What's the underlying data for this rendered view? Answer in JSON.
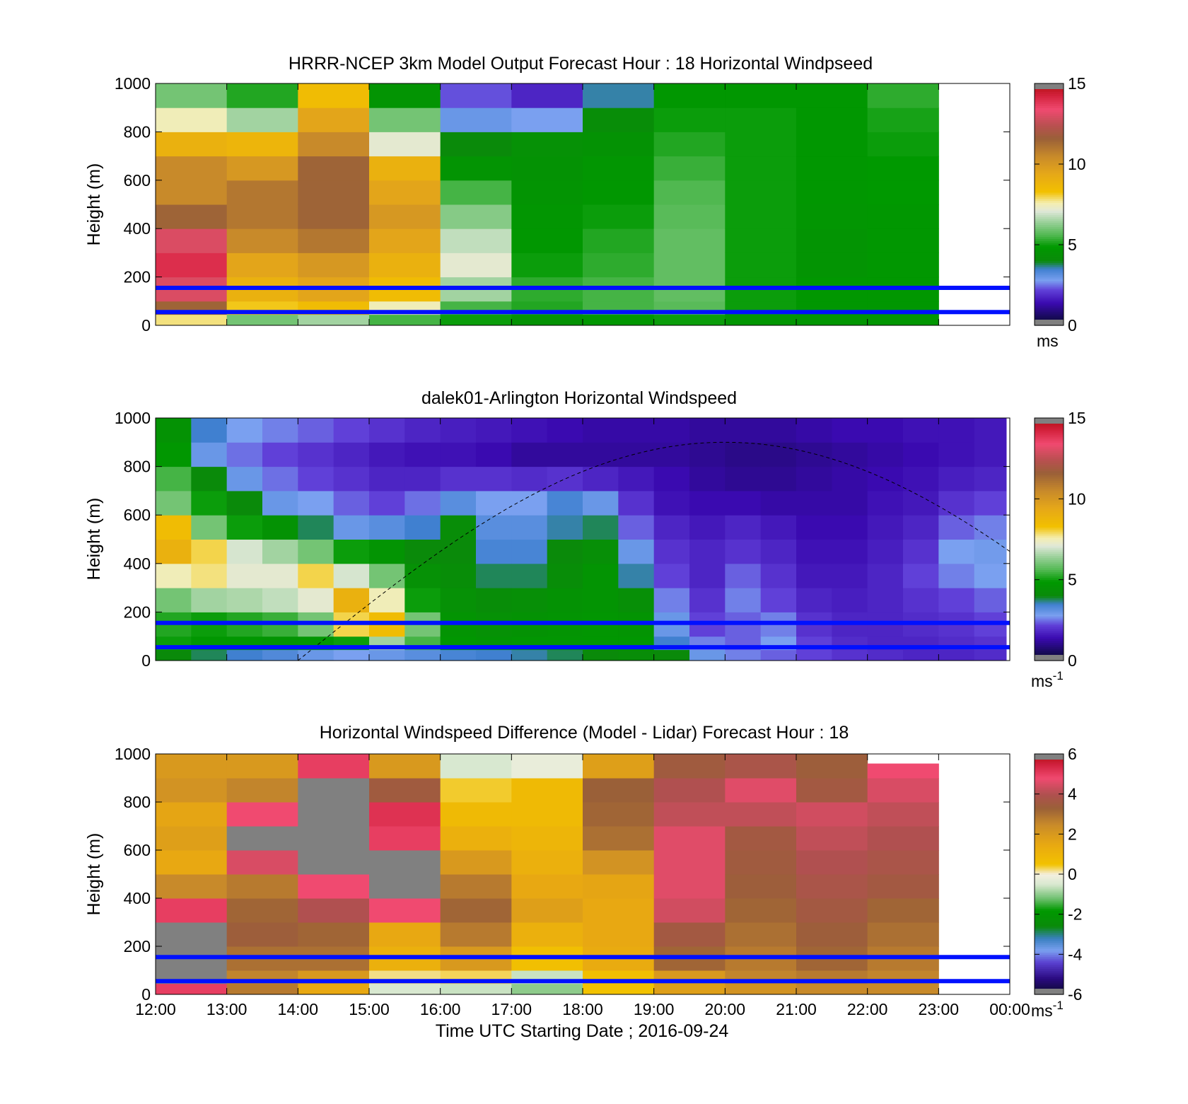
{
  "figure": {
    "xlabel": "Time UTC  Starting Date ; 2016-09-24",
    "x_ticks": [
      "12:00",
      "13:00",
      "14:00",
      "15:00",
      "16:00",
      "17:00",
      "18:00",
      "19:00",
      "20:00",
      "21:00",
      "22:00",
      "23:00",
      "00:00"
    ]
  },
  "chart_data": [
    {
      "type": "heatmap",
      "title": "HRRR-NCEP 3km Model Output   Forecast Hour : 18 Horizontal Windpseed",
      "ylabel": "Height (m)",
      "ylim": [
        0,
        1000
      ],
      "y_ticks": [
        "0",
        "200",
        "400",
        "600",
        "800",
        "1000"
      ],
      "colorbar": {
        "range": [
          0,
          15
        ],
        "ticks": [
          "0",
          "5",
          "10",
          "15"
        ],
        "unit": "ms",
        "unit_sup": "",
        "colormap": "speed"
      },
      "x_hours": [
        12,
        13,
        14,
        15,
        16,
        17,
        18,
        19,
        20,
        21,
        22,
        23,
        24
      ],
      "height_levels_m": [
        20,
        75,
        150,
        250,
        350,
        450,
        550,
        650,
        750,
        850,
        950
      ],
      "columns": [
        {
          "hour_start": 12,
          "speed_ms": [
            7.8,
            11.5,
            13.0,
            14.0,
            13.0,
            11.5,
            10.5,
            10.5,
            9.0,
            7.5,
            6.0
          ]
        },
        {
          "hour_start": 13,
          "speed_ms": [
            6.0,
            8.2,
            9.0,
            9.5,
            10.5,
            11.0,
            11.0,
            10.0,
            8.8,
            6.5,
            5.2
          ]
        },
        {
          "hour_start": 14,
          "speed_ms": [
            6.5,
            8.5,
            9.5,
            10.0,
            11.0,
            11.5,
            11.5,
            11.5,
            10.5,
            9.5,
            8.5
          ]
        },
        {
          "hour_start": 15,
          "speed_ms": [
            5.5,
            7.5,
            8.5,
            9.0,
            9.5,
            10.0,
            9.5,
            9.0,
            7.2,
            6.0,
            4.6
          ]
        },
        {
          "hour_start": 16,
          "speed_ms": [
            5.0,
            5.5,
            6.5,
            7.2,
            6.8,
            6.2,
            5.5,
            4.6,
            4.0,
            3.0,
            2.3
          ]
        },
        {
          "hour_start": 17,
          "speed_ms": [
            4.5,
            5.2,
            5.3,
            5.0,
            4.8,
            4.7,
            4.6,
            4.5,
            4.4,
            2.8,
            1.8
          ]
        },
        {
          "hour_start": 18,
          "speed_ms": [
            4.8,
            5.5,
            5.5,
            5.3,
            5.2,
            5.0,
            4.8,
            4.7,
            4.5,
            4.2,
            3.6
          ]
        },
        {
          "hour_start": 19,
          "speed_ms": [
            5.0,
            5.7,
            5.8,
            5.8,
            5.8,
            5.7,
            5.6,
            5.4,
            5.2,
            5.0,
            4.8
          ]
        },
        {
          "hour_start": 20,
          "speed_ms": [
            4.7,
            5.0,
            5.0,
            5.0,
            5.0,
            5.0,
            5.0,
            5.0,
            5.0,
            5.0,
            4.8
          ]
        },
        {
          "hour_start": 21,
          "speed_ms": [
            4.7,
            4.8,
            4.8,
            4.6,
            4.6,
            4.7,
            4.8,
            4.8,
            4.8,
            4.8,
            4.8
          ]
        },
        {
          "hour_start": 22,
          "speed_ms": [
            4.7,
            4.8,
            4.8,
            4.8,
            4.8,
            4.8,
            4.9,
            4.9,
            5.0,
            5.1,
            5.3
          ]
        }
      ],
      "reference_lines_m": [
        55,
        155
      ]
    },
    {
      "type": "heatmap",
      "title": "dalek01-Arlington  Horizontal Windspeed",
      "ylabel": "Height (m)",
      "ylim": [
        0,
        1000
      ],
      "y_ticks": [
        "0",
        "200",
        "400",
        "600",
        "800",
        "1000"
      ],
      "colorbar": {
        "range": [
          0,
          15
        ],
        "ticks": [
          "0",
          "5",
          "10",
          "15"
        ],
        "unit": "ms",
        "unit_sup": "-1",
        "colormap": "speed"
      },
      "x_hours": [
        12,
        13,
        14,
        15,
        16,
        17,
        18,
        19,
        20,
        21,
        22,
        23,
        24
      ],
      "height_levels_m": [
        20,
        75,
        150,
        250,
        350,
        450,
        550,
        650,
        750,
        850,
        950
      ],
      "columns": [
        {
          "hour_start": 12.0,
          "speed_ms": [
            4.0,
            5.0,
            5.2,
            6.0,
            7.5,
            9.0,
            8.5,
            6.0,
            5.5,
            4.8,
            4.5
          ]
        },
        {
          "hour_start": 12.5,
          "speed_ms": [
            3.8,
            4.8,
            5.0,
            6.5,
            7.8,
            8.0,
            6.0,
            5.0,
            4.0,
            3.0,
            3.5
          ]
        },
        {
          "hour_start": 13.0,
          "speed_ms": [
            3.5,
            4.8,
            5.2,
            6.6,
            7.2,
            7.0,
            5.0,
            4.0,
            3.0,
            2.5,
            2.8
          ]
        },
        {
          "hour_start": 13.5,
          "speed_ms": [
            3.3,
            4.6,
            5.4,
            6.8,
            7.2,
            6.5,
            4.5,
            3.0,
            2.5,
            2.2,
            2.6
          ]
        },
        {
          "hour_start": 14.0,
          "speed_ms": [
            3.0,
            4.7,
            6.0,
            7.2,
            8.0,
            6.0,
            3.8,
            2.8,
            2.2,
            2.0,
            2.4
          ]
        },
        {
          "hour_start": 14.5,
          "speed_ms": [
            2.8,
            5.0,
            8.0,
            9.0,
            7.0,
            5.0,
            3.0,
            2.4,
            2.0,
            1.8,
            2.2
          ]
        },
        {
          "hour_start": 15.0,
          "speed_ms": [
            3.0,
            6.5,
            8.5,
            7.5,
            6.0,
            4.6,
            3.2,
            2.2,
            1.8,
            1.6,
            2.0
          ]
        },
        {
          "hour_start": 15.5,
          "speed_ms": [
            3.2,
            5.5,
            6.0,
            5.0,
            4.4,
            4.0,
            3.5,
            2.5,
            1.8,
            1.5,
            1.8
          ]
        },
        {
          "hour_start": 16.0,
          "speed_ms": [
            3.4,
            4.8,
            4.6,
            4.4,
            4.2,
            4.0,
            4.2,
            3.2,
            2.0,
            1.5,
            1.7
          ]
        },
        {
          "hour_start": 16.5,
          "speed_ms": [
            3.5,
            4.6,
            4.4,
            4.2,
            3.8,
            3.4,
            3.2,
            2.8,
            2.0,
            1.4,
            1.6
          ]
        },
        {
          "hour_start": 17.0,
          "speed_ms": [
            3.6,
            4.7,
            4.5,
            4.3,
            3.8,
            3.4,
            3.2,
            2.8,
            1.9,
            1.2,
            1.5
          ]
        },
        {
          "hour_start": 17.5,
          "speed_ms": [
            3.8,
            4.7,
            4.6,
            4.5,
            4.2,
            4.0,
            3.6,
            3.4,
            2.0,
            1.2,
            1.4
          ]
        },
        {
          "hour_start": 18.0,
          "speed_ms": [
            4.0,
            4.8,
            4.7,
            4.6,
            4.6,
            4.3,
            3.8,
            3.0,
            1.8,
            1.2,
            1.3
          ]
        },
        {
          "hour_start": 18.5,
          "speed_ms": [
            4.2,
            4.8,
            4.6,
            4.3,
            3.6,
            3.0,
            2.4,
            2.0,
            1.6,
            1.2,
            1.3
          ]
        },
        {
          "hour_start": 19.0,
          "speed_ms": [
            4.0,
            3.5,
            3.0,
            2.6,
            2.2,
            2.0,
            1.8,
            1.5,
            1.4,
            1.2,
            1.3
          ]
        },
        {
          "hour_start": 19.5,
          "speed_ms": [
            3.0,
            2.6,
            2.2,
            2.0,
            1.8,
            1.8,
            1.6,
            1.4,
            1.2,
            1.1,
            1.2
          ]
        },
        {
          "hour_start": 20.0,
          "speed_ms": [
            2.6,
            2.4,
            2.4,
            2.6,
            2.4,
            2.0,
            1.8,
            1.4,
            1.1,
            1.0,
            1.2
          ]
        },
        {
          "hour_start": 20.5,
          "speed_ms": [
            2.4,
            2.8,
            2.6,
            2.2,
            2.0,
            1.8,
            1.6,
            1.3,
            1.1,
            1.0,
            1.2
          ]
        },
        {
          "hour_start": 21.0,
          "speed_ms": [
            2.2,
            2.2,
            2.0,
            1.8,
            1.6,
            1.5,
            1.4,
            1.3,
            1.2,
            1.1,
            1.3
          ]
        },
        {
          "hour_start": 21.5,
          "speed_ms": [
            2.0,
            1.9,
            1.8,
            1.7,
            1.6,
            1.5,
            1.4,
            1.3,
            1.3,
            1.2,
            1.4
          ]
        },
        {
          "hour_start": 22.0,
          "speed_ms": [
            1.9,
            1.8,
            1.8,
            1.8,
            1.8,
            1.7,
            1.6,
            1.5,
            1.4,
            1.3,
            1.4
          ]
        },
        {
          "hour_start": 22.5,
          "speed_ms": [
            1.8,
            1.8,
            1.9,
            2.0,
            2.2,
            2.0,
            1.8,
            1.6,
            1.5,
            1.4,
            1.5
          ]
        },
        {
          "hour_start": 23.0,
          "speed_ms": [
            1.8,
            1.9,
            2.0,
            2.2,
            2.6,
            2.8,
            2.4,
            2.0,
            1.7,
            1.5,
            1.5
          ]
        },
        {
          "hour_start": 23.5,
          "speed_ms": [
            1.9,
            2.0,
            2.2,
            2.4,
            2.8,
            2.9,
            2.6,
            2.2,
            1.8,
            1.6,
            1.6
          ]
        }
      ],
      "data_end_hour": 23.95,
      "reference_lines_m": [
        55,
        155
      ],
      "dashed_curve": {
        "start_hour": 14.0,
        "peak_hour": 20.0,
        "peak_height_m": 900,
        "end_hour": 24.0
      }
    },
    {
      "type": "heatmap",
      "title": "Horizontal Windspeed Difference (Model - Lidar) Forecast Hour : 18",
      "ylabel": "Height (m)",
      "ylim": [
        0,
        1000
      ],
      "y_ticks": [
        "0",
        "200",
        "400",
        "600",
        "800",
        "1000"
      ],
      "colorbar": {
        "range": [
          -6,
          6
        ],
        "ticks": [
          "-6",
          "-4",
          "-2",
          "0",
          "2",
          "4",
          "6"
        ],
        "unit": "ms",
        "unit_sup": "-1",
        "colormap": "diff"
      },
      "x_hours": [
        12,
        13,
        14,
        15,
        16,
        17,
        18,
        19,
        20,
        21,
        22,
        23,
        24
      ],
      "height_levels_m": [
        20,
        75,
        150,
        250,
        350,
        450,
        550,
        650,
        750,
        850,
        950
      ],
      "columns": [
        {
          "hour_start": 12,
          "diff_ms": [
            5.0,
            null,
            null,
            null,
            5.0,
            2.5,
            1.5,
            1.8,
            1.6,
            2.2,
            2.0
          ]
        },
        {
          "hour_start": 13,
          "diff_ms": [
            2.8,
            2.6,
            3.0,
            3.4,
            3.2,
            2.8,
            4.5,
            null,
            4.8,
            2.6,
            2.0
          ]
        },
        {
          "hour_start": 14,
          "diff_ms": [
            1.5,
            2.0,
            3.0,
            3.2,
            4.0,
            4.8,
            null,
            null,
            null,
            null,
            5.0
          ]
        },
        {
          "hour_start": 15,
          "diff_ms": [
            -0.5,
            0.2,
            1.2,
            1.5,
            4.8,
            null,
            null,
            5.0,
            5.2,
            3.5,
            2.0
          ]
        },
        {
          "hour_start": 16,
          "diff_ms": [
            -0.6,
            0.3,
            2.0,
            2.8,
            3.2,
            2.8,
            2.0,
            1.2,
            0.8,
            0.4,
            -0.5
          ]
        },
        {
          "hour_start": 17,
          "diff_ms": [
            -1.0,
            -0.6,
            0.6,
            1.2,
            1.8,
            1.5,
            1.2,
            1.0,
            0.8,
            0.8,
            -0.2
          ]
        },
        {
          "hour_start": 18,
          "diff_ms": [
            0.5,
            0.6,
            1.4,
            1.5,
            1.5,
            1.6,
            2.2,
            3.0,
            3.2,
            3.3,
            1.8
          ]
        },
        {
          "hour_start": 19,
          "diff_ms": [
            1.8,
            2.0,
            3.2,
            3.6,
            4.4,
            4.6,
            4.6,
            4.6,
            4.2,
            4.0,
            3.5
          ]
        },
        {
          "hour_start": 20,
          "diff_ms": [
            2.2,
            2.6,
            2.8,
            3.0,
            3.2,
            3.4,
            3.5,
            3.6,
            4.2,
            4.6,
            3.8
          ]
        },
        {
          "hour_start": 21,
          "diff_ms": [
            2.5,
            2.8,
            3.2,
            3.4,
            3.6,
            3.8,
            4.0,
            4.2,
            4.4,
            3.6,
            3.4
          ]
        },
        {
          "hour_start": 22,
          "diff_ms": [
            2.5,
            2.6,
            2.8,
            3.0,
            3.2,
            3.6,
            3.8,
            4.0,
            4.2,
            4.5,
            4.8
          ]
        }
      ],
      "data_top_m": [
        1000,
        1000,
        1000,
        1000,
        1000,
        1000,
        1000,
        1000,
        1000,
        1000,
        960
      ],
      "reference_lines_m": [
        55,
        155
      ]
    }
  ]
}
